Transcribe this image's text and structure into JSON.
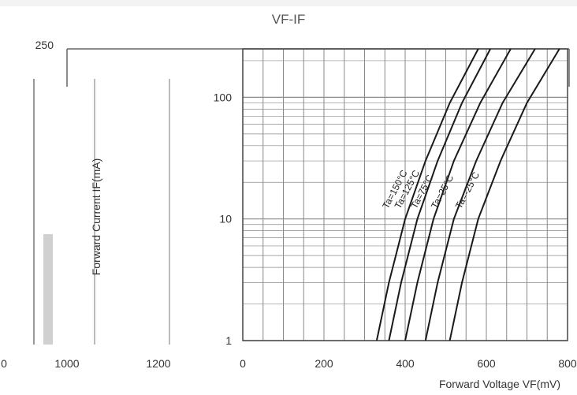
{
  "chart_data": {
    "type": "line",
    "title": "VF-IF",
    "xlabel": "Forward Voltage   VF(mV)",
    "ylabel": "Forward Current   IF(mA)",
    "x_scale": "linear",
    "y_scale": "log",
    "xlim": [
      0,
      800
    ],
    "ylim": [
      1,
      250
    ],
    "x_ticks": [
      "0",
      "200",
      "400",
      "600",
      "800"
    ],
    "y_ticks": [
      "1",
      "10",
      "100",
      "250"
    ],
    "ghost_x_ticks": [
      "0",
      "1000",
      "1200"
    ],
    "series": [
      {
        "name": "Ta=150°C",
        "x": [
          330,
          360,
          400,
          450,
          510,
          580
        ],
        "y": [
          1,
          3,
          10,
          30,
          90,
          250
        ]
      },
      {
        "name": "Ta=125°C",
        "x": [
          360,
          390,
          430,
          480,
          540,
          610
        ],
        "y": [
          1,
          3,
          10,
          30,
          90,
          250
        ]
      },
      {
        "name": "Ta=75°C",
        "x": [
          400,
          430,
          470,
          520,
          585,
          660
        ],
        "y": [
          1,
          3,
          10,
          30,
          90,
          250
        ]
      },
      {
        "name": "Ta=25°C",
        "x": [
          450,
          480,
          520,
          575,
          640,
          720
        ],
        "y": [
          1,
          3,
          10,
          30,
          90,
          250
        ]
      },
      {
        "name": "Ta=-25°C",
        "x": [
          510,
          540,
          580,
          635,
          700,
          780
        ],
        "y": [
          1,
          3,
          10,
          30,
          90,
          250
        ]
      }
    ],
    "grid": true,
    "legend": "none",
    "colors": {
      "curve": "#1a1a1a",
      "grid": "#8a8a8a",
      "text": "#333333",
      "title": "#555555"
    }
  }
}
